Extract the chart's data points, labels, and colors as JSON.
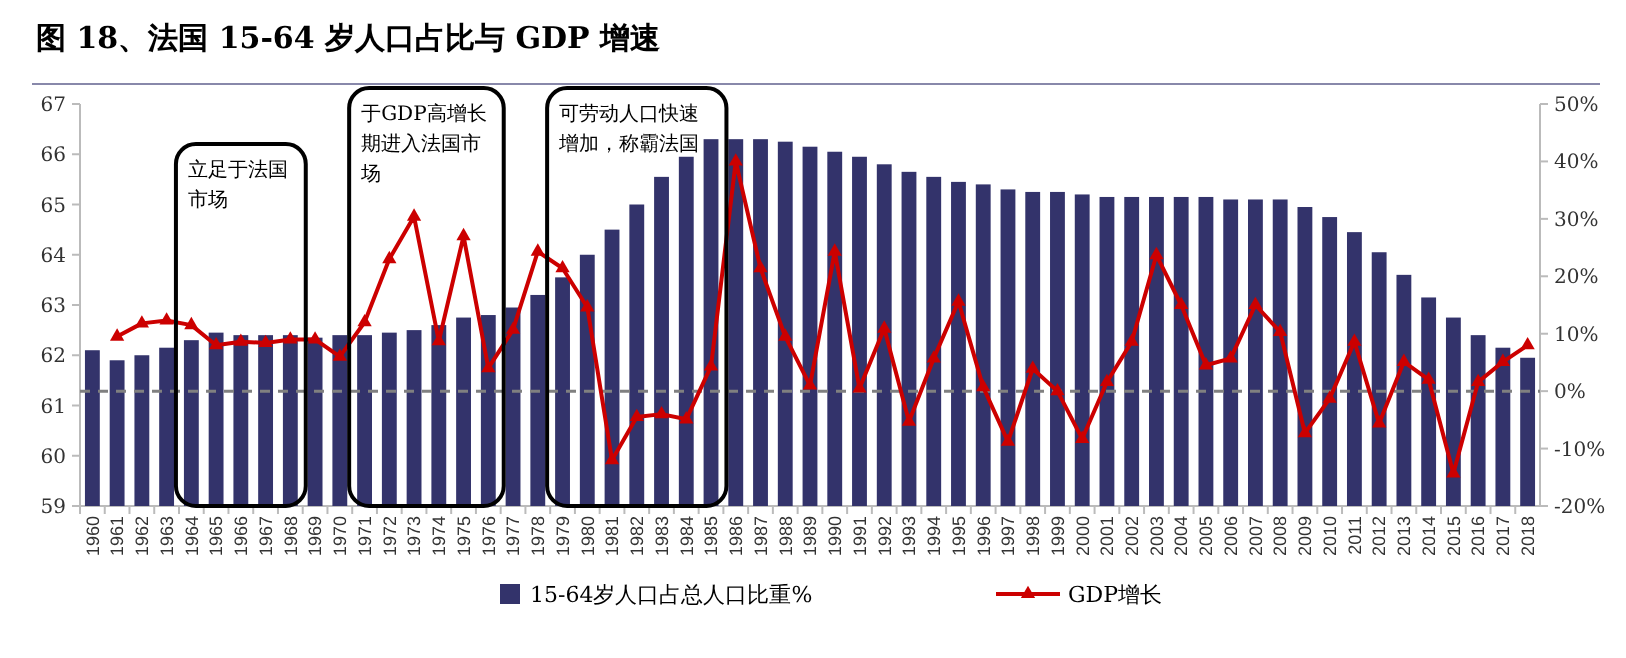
{
  "chart_data": {
    "type": "bar",
    "title": "图 18、法国 15-64 岁人口占比与 GDP 增速",
    "categories": [
      "1960",
      "1961",
      "1962",
      "1963",
      "1964",
      "1965",
      "1966",
      "1967",
      "1968",
      "1969",
      "1970",
      "1971",
      "1972",
      "1973",
      "1974",
      "1975",
      "1976",
      "1977",
      "1978",
      "1979",
      "1980",
      "1981",
      "1982",
      "1983",
      "1984",
      "1985",
      "1986",
      "1987",
      "1988",
      "1989",
      "1990",
      "1991",
      "1992",
      "1993",
      "1994",
      "1995",
      "1996",
      "1997",
      "1998",
      "1999",
      "2000",
      "2001",
      "2002",
      "2003",
      "2004",
      "2005",
      "2006",
      "2007",
      "2008",
      "2009",
      "2010",
      "2011",
      "2012",
      "2013",
      "2014",
      "2015",
      "2016",
      "2017",
      "2018"
    ],
    "series": [
      {
        "name": "15-64岁人口占总人口比重%",
        "color": "#33336b",
        "values": [
          62.1,
          61.9,
          62.0,
          62.15,
          62.3,
          62.45,
          62.4,
          62.4,
          62.4,
          62.35,
          62.4,
          62.4,
          62.45,
          62.5,
          62.6,
          62.75,
          62.8,
          62.95,
          63.2,
          63.55,
          64.0,
          64.5,
          65.0,
          65.55,
          65.95,
          66.3,
          66.3,
          66.3,
          66.25,
          66.15,
          66.05,
          65.95,
          65.8,
          65.65,
          65.55,
          65.45,
          65.4,
          65.3,
          65.25,
          65.25,
          65.2,
          65.15,
          65.15,
          65.15,
          65.15,
          65.15,
          65.1,
          65.1,
          65.1,
          64.95,
          64.75,
          64.45,
          64.05,
          63.6,
          63.15,
          62.75,
          62.4,
          62.15,
          61.95
        ]
      },
      {
        "name": "GDP增长",
        "type": "line",
        "axis": "y2",
        "color": "#cc0000",
        "marker": "triangle",
        "line_style": "solid",
        "values": [
          null,
          9.5,
          11.8,
          12.3,
          11.5,
          8,
          8.6,
          8.4,
          9,
          9,
          6,
          12,
          23,
          30.4,
          8.7,
          27,
          4,
          10.7,
          24.3,
          21.4,
          14.6,
          -12,
          -4.5,
          -4,
          -4.9,
          4.3,
          40,
          21.4,
          9.5,
          1,
          24.3,
          0.5,
          10.9,
          -5.3,
          5.7,
          15.6,
          0.7,
          -8.8,
          3.9,
          0,
          -8.3,
          1.6,
          8.6,
          23.7,
          15,
          4.5,
          5.7,
          15,
          10.3,
          -7.3,
          -1.3,
          8.6,
          -5.6,
          5.1,
          2,
          -14.3,
          1.6,
          5.1,
          8
        ]
      }
    ],
    "ylim": [
      59,
      67
    ],
    "yticks": [
      59,
      60,
      61,
      62,
      63,
      64,
      65,
      66,
      67
    ],
    "y2lim": [
      -20,
      50
    ],
    "y2ticks": [
      {
        "value": -20,
        "label": "-20%"
      },
      {
        "value": -10,
        "label": "-10%"
      },
      {
        "value": 0,
        "label": "0%"
      },
      {
        "value": 10,
        "label": "10%"
      },
      {
        "value": 20,
        "label": "20%"
      },
      {
        "value": 30,
        "label": "30%"
      },
      {
        "value": 40,
        "label": "40%"
      },
      {
        "value": 50,
        "label": "50%"
      }
    ],
    "ref_lines": [
      {
        "axis": "y2",
        "value": 0,
        "color": "#808080",
        "line_style": "dashed"
      }
    ],
    "annotations": [
      "立足于法国市场",
      "于GDP高增长期进入法国市场",
      "可劳动人口快速增加，称霸法国"
    ],
    "grid": false,
    "legend": "bottom"
  }
}
